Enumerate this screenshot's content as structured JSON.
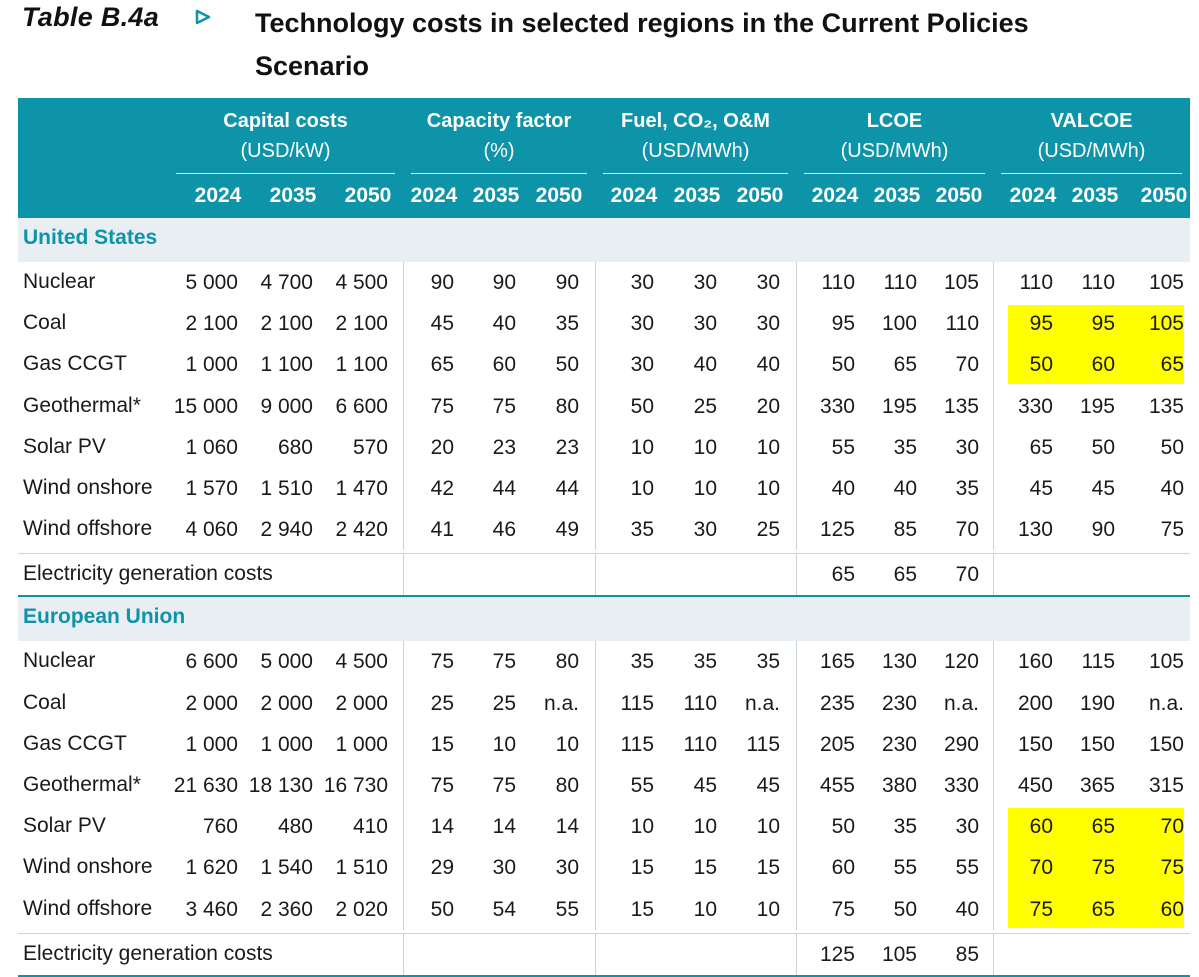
{
  "table_label": "Table B.4a",
  "title": "Technology costs in selected regions in the Current Policies Scenario",
  "colors": {
    "header_bg": "#0e94a9",
    "region_text": "#0e94a9",
    "region_band": "#e9eef3",
    "highlight": "#ffff00"
  },
  "groups": [
    {
      "name": "Capital costs",
      "unit": "(USD/kW)"
    },
    {
      "name": "Capacity factor",
      "unit": "(%)"
    },
    {
      "name": "Fuel, CO₂, O&M",
      "unit": "(USD/MWh)"
    },
    {
      "name": "LCOE",
      "unit": "(USD/MWh)"
    },
    {
      "name": "VALCOE",
      "unit": "(USD/MWh)"
    }
  ],
  "years": [
    "2024",
    "2035",
    "2050"
  ],
  "regions": [
    {
      "name": "United States",
      "rows": [
        {
          "label": "Nuclear",
          "values": [
            "5 000",
            "4 700",
            "4 500",
            "90",
            "90",
            "90",
            "30",
            "30",
            "30",
            "110",
            "110",
            "105",
            "110",
            "110",
            "105"
          ]
        },
        {
          "label": "Coal",
          "values": [
            "2 100",
            "2 100",
            "2 100",
            "45",
            "40",
            "35",
            "30",
            "30",
            "30",
            "95",
            "100",
            "110",
            "95",
            "95",
            "105"
          ]
        },
        {
          "label": "Gas CCGT",
          "values": [
            "1 000",
            "1 100",
            "1 100",
            "65",
            "60",
            "50",
            "30",
            "40",
            "40",
            "50",
            "65",
            "70",
            "50",
            "60",
            "65"
          ]
        },
        {
          "label": "Geothermal*",
          "values": [
            "15 000",
            "9 000",
            "6 600",
            "75",
            "75",
            "80",
            "50",
            "25",
            "20",
            "330",
            "195",
            "135",
            "330",
            "195",
            "135"
          ]
        },
        {
          "label": "Solar PV",
          "values": [
            "1 060",
            "680",
            "570",
            "20",
            "23",
            "23",
            "10",
            "10",
            "10",
            "55",
            "35",
            "30",
            "65",
            "50",
            "50"
          ]
        },
        {
          "label": "Wind onshore",
          "values": [
            "1 570",
            "1 510",
            "1 470",
            "42",
            "44",
            "44",
            "10",
            "10",
            "10",
            "40",
            "40",
            "35",
            "45",
            "45",
            "40"
          ]
        },
        {
          "label": "Wind offshore",
          "values": [
            "4 060",
            "2 940",
            "2 420",
            "41",
            "46",
            "49",
            "35",
            "30",
            "25",
            "125",
            "85",
            "70",
            "130",
            "90",
            "75"
          ]
        }
      ],
      "gen_costs": {
        "label": "Electricity generation costs",
        "values": [
          "65",
          "65",
          "70"
        ]
      }
    },
    {
      "name": "European Union",
      "rows": [
        {
          "label": "Nuclear",
          "values": [
            "6 600",
            "5 000",
            "4 500",
            "75",
            "75",
            "80",
            "35",
            "35",
            "35",
            "165",
            "130",
            "120",
            "160",
            "115",
            "105"
          ]
        },
        {
          "label": "Coal",
          "values": [
            "2 000",
            "2 000",
            "2 000",
            "25",
            "25",
            "n.a.",
            "115",
            "110",
            "n.a.",
            "235",
            "230",
            "n.a.",
            "200",
            "190",
            "n.a."
          ]
        },
        {
          "label": "Gas CCGT",
          "values": [
            "1 000",
            "1 000",
            "1 000",
            "15",
            "10",
            "10",
            "115",
            "110",
            "115",
            "205",
            "230",
            "290",
            "150",
            "150",
            "150"
          ]
        },
        {
          "label": "Geothermal*",
          "values": [
            "21 630",
            "18 130",
            "16 730",
            "75",
            "75",
            "80",
            "55",
            "45",
            "45",
            "455",
            "380",
            "330",
            "450",
            "365",
            "315"
          ]
        },
        {
          "label": "Solar PV",
          "values": [
            "760",
            "480",
            "410",
            "14",
            "14",
            "14",
            "10",
            "10",
            "10",
            "50",
            "35",
            "30",
            "60",
            "65",
            "70"
          ]
        },
        {
          "label": "Wind onshore",
          "values": [
            "1 620",
            "1 540",
            "1 510",
            "29",
            "30",
            "30",
            "15",
            "15",
            "15",
            "60",
            "55",
            "55",
            "70",
            "75",
            "75"
          ]
        },
        {
          "label": "Wind offshore",
          "values": [
            "3 460",
            "2 360",
            "2 020",
            "50",
            "54",
            "55",
            "15",
            "10",
            "10",
            "75",
            "50",
            "40",
            "75",
            "65",
            "60"
          ]
        }
      ],
      "gen_costs": {
        "label": "Electricity generation costs",
        "values": [
          "125",
          "105",
          "85"
        ]
      }
    }
  ]
}
